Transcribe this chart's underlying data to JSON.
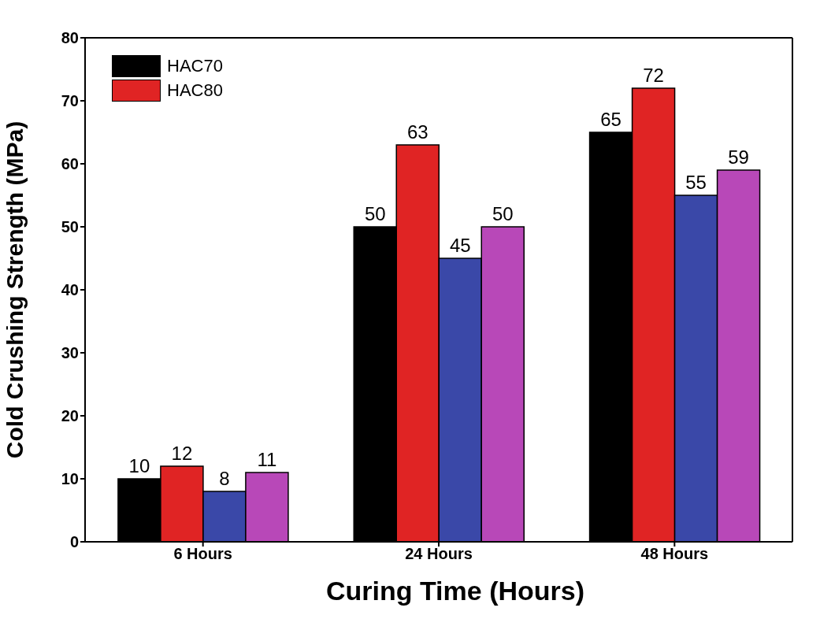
{
  "chart_data": {
    "type": "bar",
    "xlabel": "Curing Time (Hours)",
    "ylabel": "Cold Crushing Strength (MPa)",
    "categories": [
      "6 Hours",
      "24 Hours",
      "48 Hours"
    ],
    "series": [
      {
        "name": "HAC70",
        "color": "#000000",
        "values": [
          10,
          50,
          65
        ]
      },
      {
        "name": "HAC80",
        "color": "#e02424",
        "values": [
          12,
          63,
          72
        ]
      },
      {
        "color": "#3a48a8",
        "values": [
          8,
          45,
          55
        ]
      },
      {
        "color": "#b848b8",
        "values": [
          11,
          50,
          59
        ]
      }
    ],
    "ylim": [
      0,
      80
    ],
    "yticks": [
      0,
      10,
      20,
      30,
      40,
      50,
      60,
      70,
      80
    ],
    "data_labels": true,
    "legend": "top left",
    "grid": false
  }
}
